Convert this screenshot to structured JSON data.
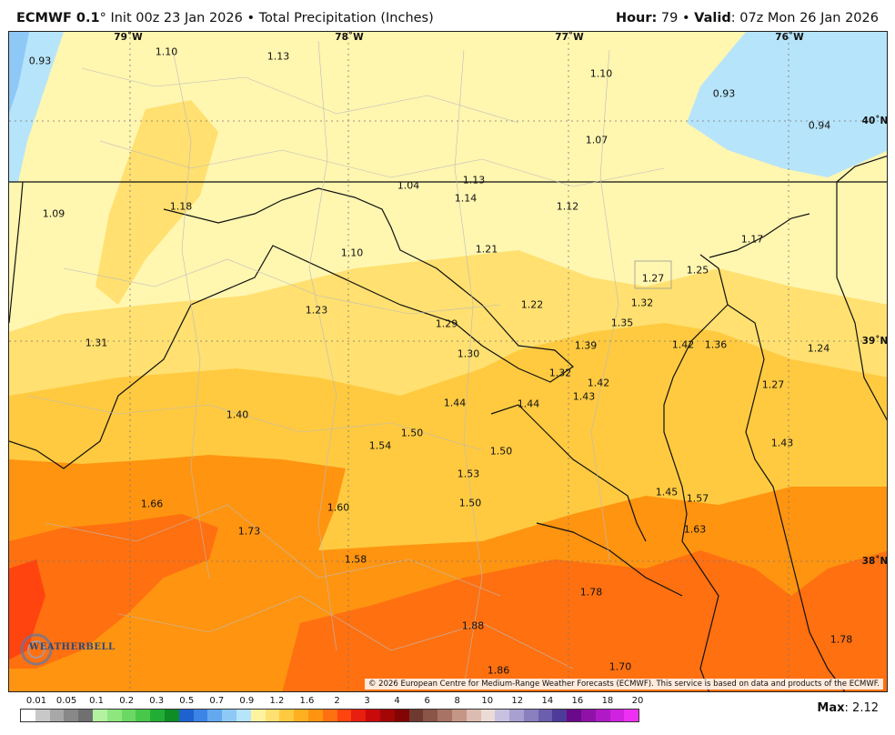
{
  "header": {
    "model": "ECMWF 0.1",
    "degree_sign": "°",
    "init": " Init 00z 23 Jan 2026",
    "separator": " • ",
    "product": "Total Precipitation (Inches)",
    "hour_label": "Hour:",
    "hour_value": " 79",
    "valid_label": "Valid",
    "valid_value": ": 07z Mon 26 Jan 2026"
  },
  "map": {
    "copyright": "© 2026 European Centre for Medium-Range Weather Forecasts (ECMWF). This service is based on data and products of the ECMWF.",
    "logo_text": "WEATHERBELL",
    "coordinates": [
      "79˚W",
      "78˚W",
      "77˚W",
      "76˚W",
      "40˚N",
      "39˚N",
      "38˚N"
    ],
    "values": [
      "0.93",
      "1.10",
      "1.13",
      "1.10",
      "0.93",
      "0.94",
      "1.07",
      "1.13",
      "1.04",
      "1.14",
      "1.12",
      "1.09",
      "1.18",
      "1.10",
      "1.21",
      "1.17",
      "1.27",
      "1.25",
      "1.32",
      "1.23",
      "1.22",
      "1.29",
      "1.35",
      "1.31",
      "1.30",
      "1.39",
      "1.42",
      "1.36",
      "1.24",
      "1.32",
      "1.42",
      "1.43",
      "1.27",
      "1.40",
      "1.44",
      "1.44",
      "1.50",
      "1.54",
      "1.50",
      "1.43",
      "1.53",
      "1.45",
      "1.57",
      "1.66",
      "1.60",
      "1.50",
      "1.73",
      "1.63",
      "1.58",
      "1.78",
      "1.88",
      "1.78",
      "1.70",
      "1.86"
    ]
  },
  "legend": {
    "ticks": [
      "0.01",
      "0.05",
      "0.1",
      "0.2",
      "0.3",
      "0.5",
      "0.7",
      "0.9",
      "1.2",
      "1.6",
      "2",
      "3",
      "4",
      "6",
      "8",
      "10",
      "12",
      "14",
      "16",
      "18",
      "20"
    ],
    "colors": [
      "#ffffff",
      "#c8c8c8",
      "#a8a8a8",
      "#888888",
      "#707070",
      "#b2f2a0",
      "#8ee67e",
      "#6cd864",
      "#48c84a",
      "#22ae34",
      "#0e8c26",
      "#1e62d0",
      "#3c84e6",
      "#64a8f0",
      "#8ec8f6",
      "#b6e4fa",
      "#fff3a0",
      "#ffe070",
      "#ffca40",
      "#ffb020",
      "#ff9410",
      "#ff7010",
      "#ff4410",
      "#e81e0e",
      "#c80a0a",
      "#a40606",
      "#820404",
      "#6e3a30",
      "#8a5446",
      "#a87264",
      "#c49686",
      "#dcbcb0",
      "#ecdad6",
      "#c8c2e0",
      "#a8a0d0",
      "#8a80c0",
      "#6c5eae",
      "#4e3a98",
      "#6a0a8a",
      "#8e12a8",
      "#b01ac6",
      "#d022e0",
      "#ee30f4"
    ],
    "max_label": "Max",
    "max_value": ": 2.12"
  }
}
